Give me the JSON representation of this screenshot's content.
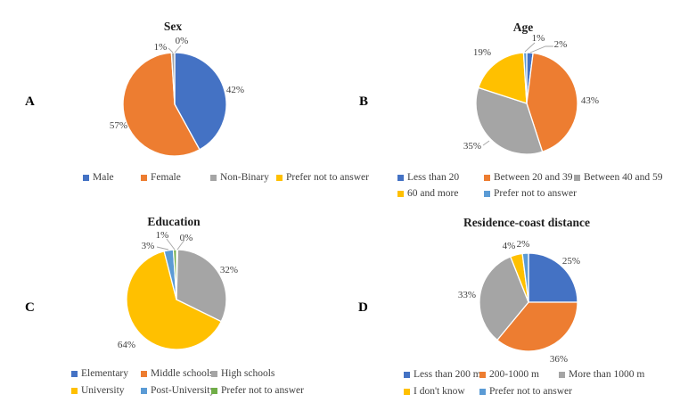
{
  "figure": {
    "background": "#ffffff"
  },
  "palette": {
    "blue": "#4472C4",
    "orange": "#ED7D31",
    "gray": "#A5A5A5",
    "yellow": "#FFC000",
    "light_blue": "#5B9BD5",
    "green": "#70AD47",
    "label_text": "#3f3f3f",
    "leader_line": "#A6A6A6"
  },
  "chart_data": [
    {
      "type": "pie",
      "panel": "A",
      "title": "Sex",
      "legend_position": "bottom",
      "labels": "percent-outside",
      "slices": [
        {
          "label": "Male",
          "value": 42,
          "display": "42%",
          "color": "blue"
        },
        {
          "label": "Female",
          "value": 57,
          "display": "57%",
          "color": "orange"
        },
        {
          "label": "Non-Binary",
          "value": 1,
          "display": "1%",
          "color": "gray"
        },
        {
          "label": "Prefer not to answer",
          "value": 0,
          "display": "0%",
          "color": "yellow"
        }
      ]
    },
    {
      "type": "pie",
      "panel": "B",
      "title": "Age",
      "legend_position": "bottom",
      "labels": "percent-outside",
      "slices": [
        {
          "label": "Less than 20",
          "value": 2,
          "display": "2%",
          "color": "blue"
        },
        {
          "label": "Between 20 and 39",
          "value": 43,
          "display": "43%",
          "color": "orange"
        },
        {
          "label": "Between 40 and 59",
          "value": 35,
          "display": "35%",
          "color": "gray"
        },
        {
          "label": "60 and more",
          "value": 19,
          "display": "19%",
          "color": "yellow"
        },
        {
          "label": "Prefer not to answer",
          "value": 1,
          "display": "1%",
          "color": "light_blue"
        }
      ]
    },
    {
      "type": "pie",
      "panel": "C",
      "title": "Education",
      "legend_position": "bottom",
      "labels": "percent-outside",
      "slices": [
        {
          "label": "Elementary",
          "value": 0,
          "display": "0%",
          "color": "blue"
        },
        {
          "label": "Middle schools",
          "value": 0,
          "display": "0%",
          "color": "orange"
        },
        {
          "label": "High schools",
          "value": 32,
          "display": "32%",
          "color": "gray"
        },
        {
          "label": "University",
          "value": 64,
          "display": "64%",
          "color": "yellow"
        },
        {
          "label": "Post-University",
          "value": 3,
          "display": "3%",
          "color": "light_blue"
        },
        {
          "label": "Prefer not to answer",
          "value": 1,
          "display": "1%",
          "color": "green"
        }
      ]
    },
    {
      "type": "pie",
      "panel": "D",
      "title": "Residence-coast distance",
      "legend_position": "bottom",
      "labels": "percent-outside",
      "slices": [
        {
          "label": "Less than 200 m",
          "value": 25,
          "display": "25%",
          "color": "blue"
        },
        {
          "label": "200-1000 m",
          "value": 36,
          "display": "36%",
          "color": "orange"
        },
        {
          "label": "More than 1000 m",
          "value": 33,
          "display": "33%",
          "color": "gray"
        },
        {
          "label": "I don't know",
          "value": 4,
          "display": "4%",
          "color": "yellow"
        },
        {
          "label": "Prefer not to answer",
          "value": 2,
          "display": "2%",
          "color": "light_blue"
        }
      ]
    }
  ]
}
